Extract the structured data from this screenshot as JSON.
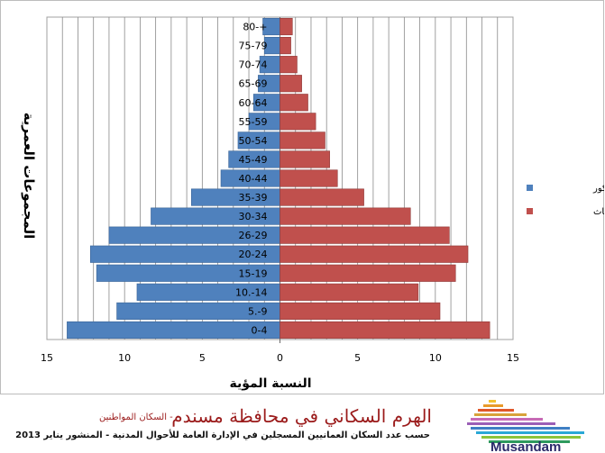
{
  "chart_data": {
    "type": "bar",
    "orientation": "horizontal-pyramid",
    "categories": [
      "0-4",
      "5.-9",
      "10.-14",
      "15-19",
      "20-24",
      "26-29",
      "30-34",
      "35-39",
      "40-44",
      "45-49",
      "50-54",
      "55-59",
      "60-64",
      "65-69",
      "70-74",
      "75-79",
      "80-+"
    ],
    "series": [
      {
        "name": "نسبة الذكور",
        "color": "#4f81bd",
        "values": [
          13.7,
          10.5,
          9.2,
          11.8,
          12.2,
          11.0,
          8.3,
          5.7,
          3.8,
          3.3,
          2.7,
          2.0,
          1.7,
          1.4,
          1.3,
          1.0,
          1.1
        ]
      },
      {
        "name": "نسبة الإناث",
        "color": "#c0504d",
        "values": [
          13.5,
          10.3,
          8.9,
          11.3,
          12.1,
          10.9,
          8.4,
          5.4,
          3.7,
          3.2,
          2.9,
          2.3,
          1.8,
          1.4,
          1.1,
          0.7,
          0.8
        ]
      }
    ],
    "xlim": [
      -15,
      15
    ],
    "xticks": [
      -15,
      -10,
      -5,
      0,
      5,
      10,
      15
    ],
    "xtick_labels": [
      "15",
      "10",
      "5",
      "0",
      "5",
      "10",
      "15"
    ],
    "xlabel": "النسبة المؤية",
    "ylabel": "المجموعات العمرية",
    "legend_position": "right",
    "grid": true
  },
  "footer": {
    "title": "الهرم السكاني في محافظة مسندم",
    "subtitle_note": "- السكان المواطنين",
    "source": "حسب عدد السكان العمانيين المسجلين في الإدارة العامة للأحوال المدنية - المنشور يناير 2013",
    "logo_text": "Musandam"
  }
}
